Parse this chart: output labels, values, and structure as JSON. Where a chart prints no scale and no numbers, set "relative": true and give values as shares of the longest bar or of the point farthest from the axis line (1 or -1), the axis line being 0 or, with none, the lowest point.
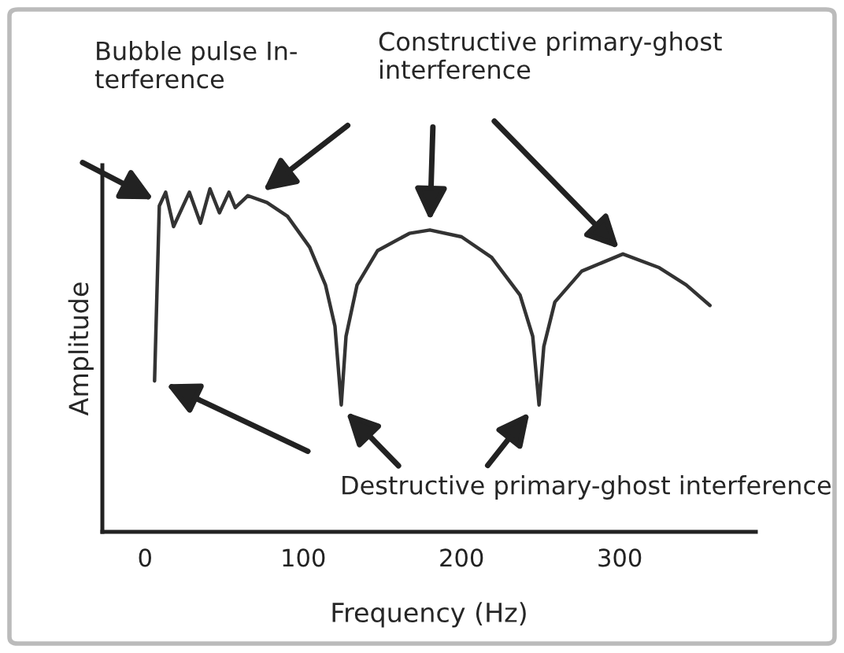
{
  "chart_data": {
    "type": "line",
    "relative": true,
    "xlabel": "Frequency (Hz)",
    "ylabel": "Amplitude",
    "x": [
      6,
      9,
      13,
      18,
      28,
      35,
      41,
      47,
      53,
      57,
      65,
      77,
      90,
      104,
      114,
      120,
      124,
      127,
      134,
      147,
      167,
      180,
      200,
      219,
      237,
      245,
      249,
      252,
      259,
      276,
      302,
      325,
      342,
      357
    ],
    "series": [
      {
        "color": "#333333",
        "values": [
          0.44,
          0.95,
          0.99,
          0.89,
          0.99,
          0.9,
          1.0,
          0.93,
          0.99,
          0.945,
          0.98,
          0.96,
          0.92,
          0.83,
          0.72,
          0.6,
          0.37,
          0.57,
          0.72,
          0.82,
          0.87,
          0.88,
          0.86,
          0.8,
          0.69,
          0.57,
          0.37,
          0.54,
          0.67,
          0.76,
          0.81,
          0.77,
          0.72,
          0.66
        ]
      }
    ],
    "xlim": [
      -27,
      386
    ],
    "xticks": [
      0,
      100,
      200,
      300
    ],
    "annotations": [
      "Bubble pulse In-\nterference",
      "Constructive primary-ghost\ninterference",
      "Destructive primary-ghost interference"
    ],
    "grid": false,
    "legend": false,
    "marker": "none",
    "line_style": "solid"
  }
}
